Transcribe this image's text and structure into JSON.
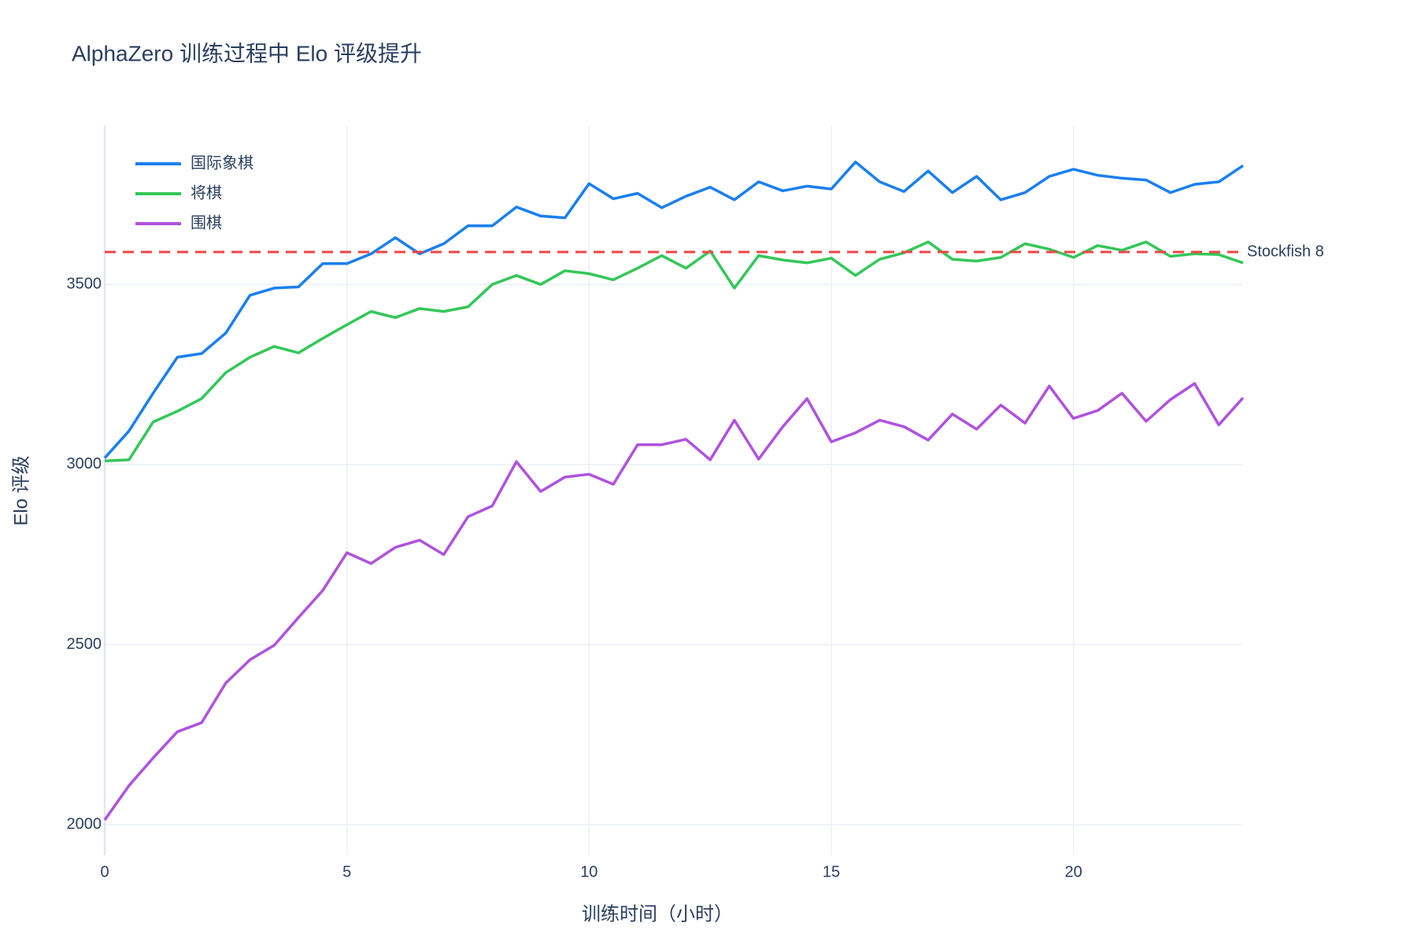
{
  "chart_data": {
    "type": "line",
    "title": "AlphaZero 训练过程中 Elo 评级提升",
    "xlabel": "训练时间（小时）",
    "ylabel": "Elo 评级",
    "x": [
      0,
      0.5,
      1,
      1.5,
      2,
      2.5,
      3,
      3.5,
      4,
      4.5,
      5,
      5.5,
      6,
      6.5,
      7,
      7.5,
      8,
      8.5,
      9,
      9.5,
      10,
      10.5,
      11,
      11.5,
      12,
      12.5,
      13,
      13.5,
      14,
      14.5,
      15,
      15.5,
      16,
      16.5,
      17,
      17.5,
      18,
      18.5,
      19,
      19.5,
      20,
      20.5,
      21,
      21.5,
      22,
      22.5,
      23,
      23.5
    ],
    "series": [
      {
        "name": "国际象棋",
        "color": "#1a7ff0",
        "values": [
          3018,
          3093,
          3198,
          3298,
          3308,
          3365,
          3470,
          3490,
          3493,
          3558,
          3558,
          3585,
          3630,
          3585,
          3613,
          3663,
          3663,
          3715,
          3690,
          3685,
          3780,
          3738,
          3753,
          3713,
          3745,
          3770,
          3735,
          3785,
          3760,
          3773,
          3765,
          3840,
          3785,
          3758,
          3815,
          3755,
          3800,
          3735,
          3755,
          3800,
          3820,
          3803,
          3795,
          3790,
          3755,
          3778,
          3785,
          3830
        ]
      },
      {
        "name": "将棋",
        "color": "#34c759",
        "values": [
          3010,
          3013,
          3118,
          3148,
          3183,
          3255,
          3298,
          3328,
          3310,
          3350,
          3388,
          3425,
          3408,
          3433,
          3425,
          3438,
          3500,
          3525,
          3500,
          3538,
          3530,
          3513,
          3545,
          3580,
          3545,
          3593,
          3490,
          3580,
          3568,
          3560,
          3573,
          3525,
          3570,
          3588,
          3618,
          3570,
          3565,
          3575,
          3613,
          3598,
          3575,
          3608,
          3595,
          3618,
          3578,
          3585,
          3583,
          3560
        ]
      },
      {
        "name": "围棋",
        "color": "#af52de",
        "values": [
          2013,
          2108,
          2185,
          2258,
          2283,
          2393,
          2458,
          2498,
          2575,
          2650,
          2755,
          2725,
          2770,
          2790,
          2750,
          2855,
          2885,
          3008,
          2925,
          2965,
          2973,
          2945,
          3055,
          3055,
          3070,
          3013,
          3123,
          3015,
          3105,
          3183,
          3063,
          3088,
          3123,
          3105,
          3068,
          3140,
          3098,
          3165,
          3115,
          3218,
          3128,
          3150,
          3198,
          3120,
          3180,
          3225,
          3110,
          3185
        ]
      }
    ],
    "reference_line": {
      "value": 3590,
      "label": "Stockfish 8",
      "color": "#ef4444"
    },
    "xlim": [
      0,
      23.5
    ],
    "ylim": [
      1915,
      3940
    ],
    "xticks": [
      0,
      5,
      10,
      15,
      20
    ],
    "yticks": [
      2000,
      2500,
      3000,
      3500
    ],
    "grid": true,
    "legend": "top-left"
  }
}
